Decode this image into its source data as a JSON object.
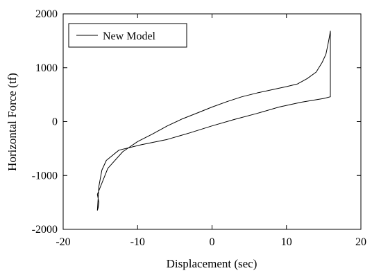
{
  "chart_data": {
    "type": "line",
    "title": "",
    "xlabel": "Displacement (sec)",
    "ylabel": "Horizontal Force (tf)",
    "xlim": [
      -20,
      20
    ],
    "ylim": [
      -2000,
      2000
    ],
    "xticks": [
      "-20",
      "-10",
      "0",
      "10",
      "20"
    ],
    "yticks": [
      "-2000",
      "-1000",
      "0",
      "1000",
      "2000"
    ],
    "grid": false,
    "legend_position": "top-left",
    "series": [
      {
        "name": "New Model",
        "color": "#000000",
        "x": [
          -15.4,
          -15.2,
          -14.8,
          -14.2,
          -12.5,
          -9.5,
          -6.0,
          -3.0,
          0.0,
          3.0,
          6.0,
          9.0,
          12.0,
          15.0,
          15.9,
          15.9,
          15.8,
          15.6,
          15.3,
          14.8,
          14.0,
          12.8,
          11.5,
          10.0,
          8.0,
          6.0,
          4.0,
          2.0,
          0.0,
          -2.0,
          -4.0,
          -6.0,
          -8.0,
          -10.0,
          -12.0,
          -14.0,
          -15.4,
          -15.2,
          -15.3,
          -15.4
        ],
        "y": [
          -1650,
          -1200,
          -900,
          -720,
          -530,
          -430,
          -330,
          -210,
          -80,
          40,
          150,
          270,
          360,
          430,
          460,
          1680,
          1600,
          1450,
          1250,
          1100,
          920,
          800,
          700,
          650,
          590,
          530,
          460,
          370,
          270,
          160,
          50,
          -80,
          -230,
          -370,
          -560,
          -870,
          -1350,
          -1500,
          -1600,
          -1650
        ]
      }
    ]
  }
}
